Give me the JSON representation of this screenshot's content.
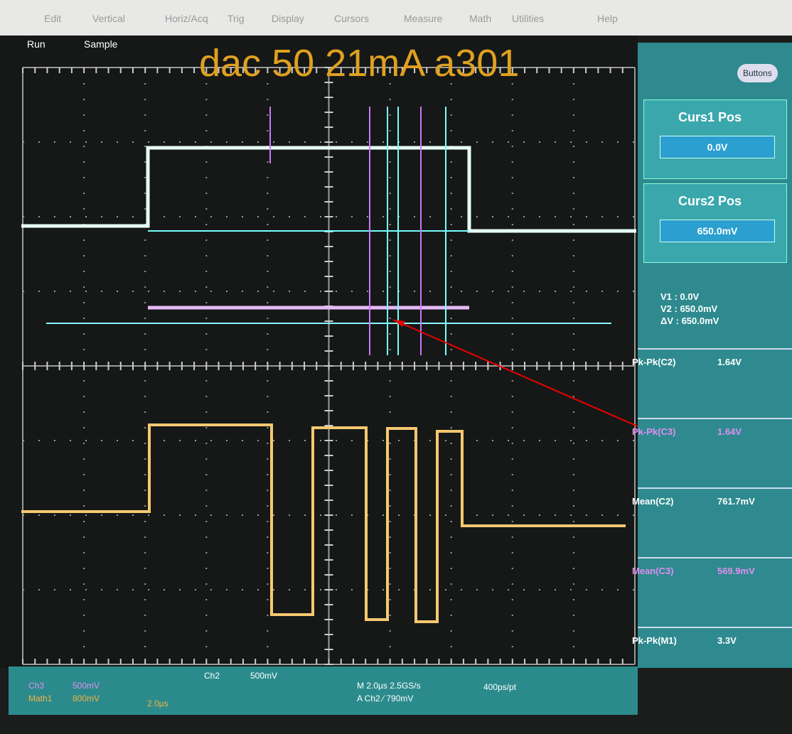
{
  "menu": [
    "Edit",
    "Vertical",
    "Horiz/Acq",
    "Trig",
    "Display",
    "Cursors",
    "Measure",
    "Math",
    "Utilities",
    "Help"
  ],
  "status": {
    "run": "Run",
    "mode": "Sample"
  },
  "overlay_title": "dac 50 21mA a301",
  "buttons": "Buttons",
  "cursors": {
    "curs1_label": "Curs1 Pos",
    "curs1_value": "0.0V",
    "curs2_label": "Curs2 Pos",
    "curs2_value": "650.0mV",
    "readout": [
      "V1 :  0.0V",
      "V2 :  650.0mV",
      "ΔV :  650.0mV"
    ]
  },
  "measurements": [
    {
      "label": "Pk-Pk(C2)",
      "value": "1.64V"
    },
    {
      "label": "Pk-Pk(C3)",
      "value": "1.64V"
    },
    {
      "label": "Mean(C2)",
      "value": "761.7mV"
    },
    {
      "label": "Mean(C3)",
      "value": "569.9mV"
    },
    {
      "label": "Pk-Pk(M1)",
      "value": "3.3V"
    }
  ],
  "bottom": {
    "ch3": "Ch3",
    "ch3_scale": "500mV",
    "math1": "Math1",
    "math1_scale": "800mV",
    "math1_time": "2.0µs",
    "ch2": "Ch2",
    "ch2_scale": "500mV",
    "horizontal": "M 2.0µs 2.5GS/s",
    "trigger": "A Ch2 ⁄ 790mV",
    "resolution": "400ps/pt"
  }
}
